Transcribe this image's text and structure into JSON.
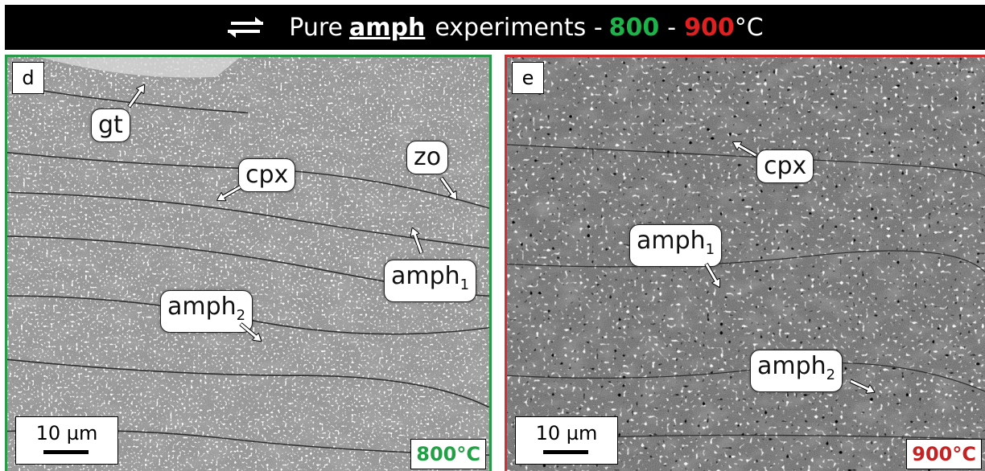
{
  "title": {
    "prefix": "Pure",
    "mineral": "amph",
    "middle": "experiments -",
    "temp_low": "800",
    "dash": "-",
    "temp_high": "900",
    "unit": "°C",
    "icon": "shear-arrows-icon",
    "colors": {
      "low": "#1db34a",
      "high": "#e02020"
    }
  },
  "panel_d": {
    "letter": "d",
    "border_color": "#2a9a4a",
    "labels": {
      "gt": "gt",
      "cpx": "cpx",
      "zo": "zo",
      "amph1_base": "amph",
      "amph1_sub": "1",
      "amph2_base": "amph",
      "amph2_sub": "2"
    },
    "scale": "10 µm",
    "temperature": "800°C"
  },
  "panel_e": {
    "letter": "e",
    "border_color": "#d23030",
    "labels": {
      "cpx": "cpx",
      "amph1_base": "amph",
      "amph1_sub": "1",
      "amph2_base": "amph",
      "amph2_sub": "2"
    },
    "scale": "10 µm",
    "temperature": "900°C"
  }
}
